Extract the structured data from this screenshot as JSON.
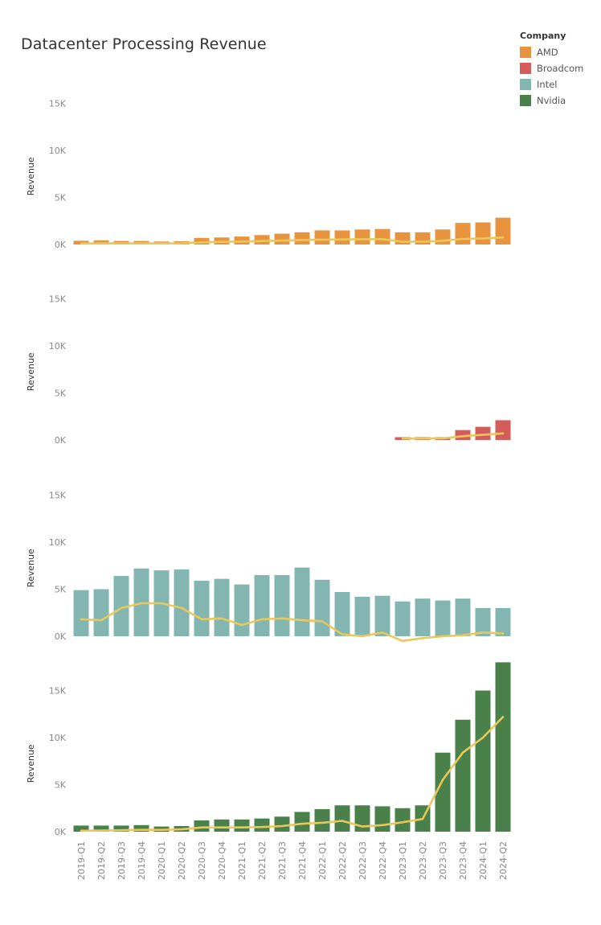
{
  "title": "Datacenter Processing Revenue",
  "legend": {
    "title": "Company",
    "items": [
      {
        "label": "AMD",
        "color": "#E8943F"
      },
      {
        "label": "Broadcom",
        "color": "#D45D5B"
      },
      {
        "label": "Intel",
        "color": "#84B6B1"
      },
      {
        "label": "Nvidia",
        "color": "#4A8049"
      }
    ]
  },
  "chart_data": {
    "type": "bar",
    "ylabel": "Revenue",
    "trend_line_color": "#E9C85B",
    "categories": [
      "2019-Q1",
      "2019-Q2",
      "2019-Q3",
      "2019-Q4",
      "2020-Q1",
      "2020-Q2",
      "2020-Q3",
      "2020-Q4",
      "2021-Q1",
      "2021-Q2",
      "2021-Q3",
      "2021-Q4",
      "2022-Q1",
      "2022-Q2",
      "2022-Q3",
      "2022-Q4",
      "2023-Q1",
      "2023-Q2",
      "2023-Q3",
      "2023-Q4",
      "2024-Q1",
      "2024-Q2"
    ],
    "panels": [
      {
        "company": "AMD",
        "color": "#E8943F",
        "ylim": [
          0,
          15000
        ],
        "yticks": [
          {
            "v": 0,
            "label": "0K"
          },
          {
            "v": 5000,
            "label": "5K"
          },
          {
            "v": 10000,
            "label": "10K"
          },
          {
            "v": 15000,
            "label": "15K"
          }
        ],
        "values": [
          400,
          450,
          380,
          380,
          320,
          350,
          700,
          750,
          850,
          1000,
          1150,
          1300,
          1500,
          1500,
          1600,
          1650,
          1300,
          1300,
          1600,
          2300,
          2350,
          2850
        ],
        "trend": [
          100,
          120,
          120,
          120,
          110,
          130,
          230,
          280,
          320,
          370,
          420,
          480,
          520,
          540,
          560,
          570,
          300,
          300,
          400,
          600,
          650,
          750
        ]
      },
      {
        "company": "Broadcom",
        "color": "#D45D5B",
        "ylim": [
          0,
          15000
        ],
        "yticks": [
          {
            "v": 0,
            "label": "0K"
          },
          {
            "v": 5000,
            "label": "5K"
          },
          {
            "v": 10000,
            "label": "10K"
          },
          {
            "v": 15000,
            "label": "15K"
          }
        ],
        "values": [
          null,
          null,
          null,
          null,
          null,
          null,
          null,
          null,
          null,
          null,
          null,
          null,
          null,
          null,
          null,
          null,
          300,
          300,
          300,
          1050,
          1400,
          2100
        ],
        "trend": [
          null,
          null,
          null,
          null,
          null,
          null,
          null,
          null,
          null,
          null,
          null,
          null,
          null,
          null,
          null,
          null,
          150,
          150,
          180,
          400,
          550,
          700
        ]
      },
      {
        "company": "Intel",
        "color": "#84B6B1",
        "ylim": [
          0,
          15000
        ],
        "yticks": [
          {
            "v": 0,
            "label": "0K"
          },
          {
            "v": 5000,
            "label": "5K"
          },
          {
            "v": 10000,
            "label": "10K"
          },
          {
            "v": 15000,
            "label": "15K"
          }
        ],
        "values": [
          4900,
          5000,
          6400,
          7200,
          7000,
          7100,
          5900,
          6100,
          5500,
          6500,
          6500,
          7300,
          6000,
          4700,
          4200,
          4300,
          3700,
          4000,
          3800,
          4000,
          3000,
          3000
        ],
        "trend": [
          1800,
          1700,
          3000,
          3500,
          3500,
          3000,
          1800,
          1900,
          1200,
          1800,
          1900,
          1700,
          1600,
          200,
          0,
          400,
          -500,
          -200,
          0,
          100,
          400,
          300
        ]
      },
      {
        "company": "Nvidia",
        "color": "#4A8049",
        "ylim": [
          0,
          18500
        ],
        "yticks": [
          {
            "v": 0,
            "label": "0K"
          },
          {
            "v": 5000,
            "label": "5K"
          },
          {
            "v": 10000,
            "label": "10K"
          },
          {
            "v": 15000,
            "label": "15K"
          }
        ],
        "values": [
          650,
          650,
          650,
          700,
          550,
          600,
          1200,
          1300,
          1300,
          1400,
          1600,
          2100,
          2400,
          2800,
          2800,
          2700,
          2500,
          2800,
          8400,
          11900,
          15000,
          18000
        ],
        "trend": [
          100,
          120,
          150,
          200,
          200,
          250,
          450,
          450,
          450,
          500,
          600,
          850,
          950,
          1150,
          550,
          700,
          1000,
          1350,
          5500,
          8400,
          10000,
          12200
        ]
      }
    ]
  }
}
